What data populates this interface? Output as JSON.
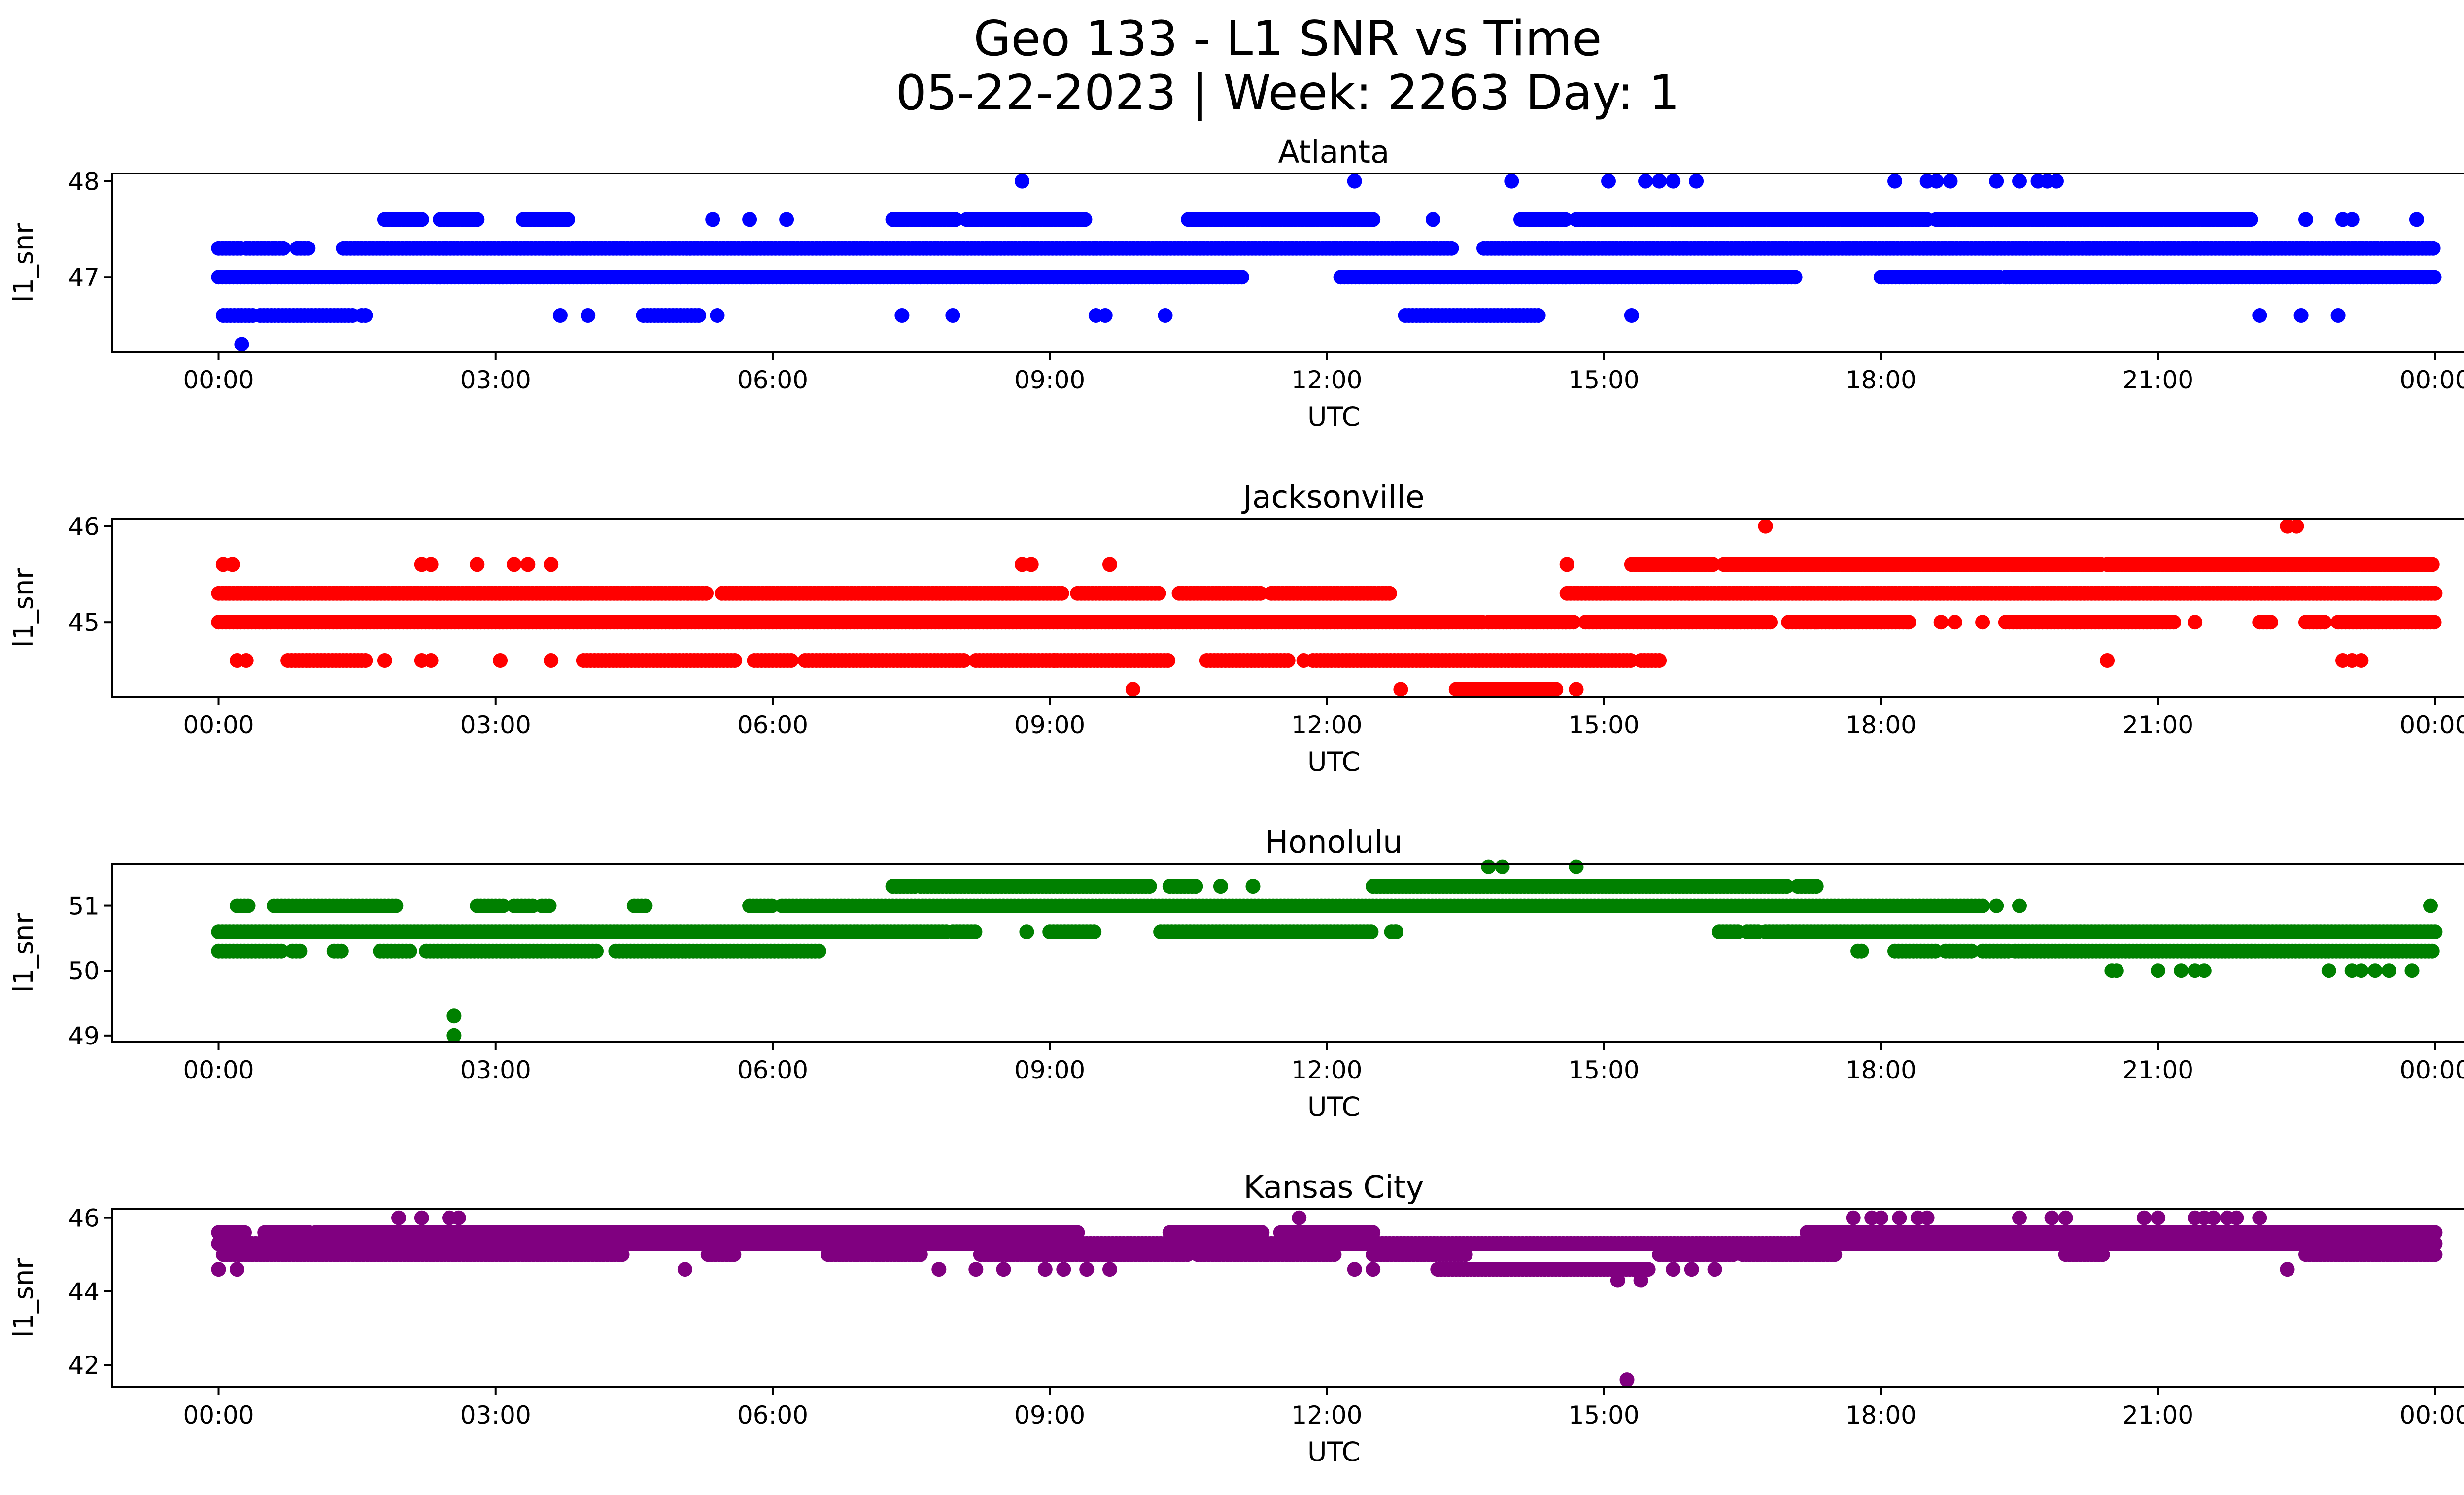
{
  "figure": {
    "title_line1": "Geo 133 - L1 SNR vs Time",
    "title_line2": "05-22-2023 | Week: 2263 Day: 1"
  },
  "chart_data": [
    {
      "type": "scatter",
      "title": "Atlanta",
      "xlabel": "UTC",
      "ylabel": "l1_snr",
      "color": "#0000ff",
      "xlim_hours": [
        -1.15,
        25.3
      ],
      "ylim": [
        46.22,
        48.08
      ],
      "x_ticks": [
        "00:00",
        "03:00",
        "06:00",
        "09:00",
        "12:00",
        "15:00",
        "18:00",
        "21:00",
        "00:00"
      ],
      "y_ticks": [
        47,
        48
      ],
      "bands": [
        {
          "y": 47.3,
          "ranges": [
            [
              0,
              0.25
            ],
            [
              0.3,
              0.7
            ],
            [
              0.85,
              1.0
            ],
            [
              1.35,
              13.35
            ],
            [
              13.7,
              24.0
            ]
          ]
        },
        {
          "y": 47.0,
          "ranges": [
            [
              0,
              11.1
            ],
            [
              12.15,
              17.1
            ],
            [
              18.0,
              19.3
            ],
            [
              19.35,
              24.0
            ]
          ]
        },
        {
          "y": 47.6,
          "ranges": [
            [
              1.8,
              2.2
            ],
            [
              2.4,
              2.8
            ],
            [
              3.3,
              3.8
            ],
            [
              7.3,
              8.0
            ],
            [
              8.1,
              9.4
            ],
            [
              10.5,
              12.5
            ],
            [
              14.1,
              14.6
            ],
            [
              14.7,
              18.5
            ],
            [
              18.6,
              22.0
            ]
          ]
        },
        {
          "y": 46.6,
          "ranges": [
            [
              0.05,
              0.4
            ],
            [
              0.45,
              1.45
            ],
            [
              1.55,
              1.6
            ],
            [
              4.6,
              5.2
            ],
            [
              12.85,
              14.3
            ]
          ]
        }
      ],
      "points": [
        [
          0.25,
          46.3
        ],
        [
          8.7,
          48.0
        ],
        [
          12.3,
          48.0
        ],
        [
          14.0,
          48.0
        ],
        [
          15.05,
          48.0
        ],
        [
          15.45,
          48.0
        ],
        [
          15.6,
          48.0
        ],
        [
          15.75,
          48.0
        ],
        [
          16.0,
          48.0
        ],
        [
          18.15,
          48.0
        ],
        [
          18.5,
          48.0
        ],
        [
          18.6,
          48.0
        ],
        [
          18.75,
          48.0
        ],
        [
          19.25,
          48.0
        ],
        [
          19.5,
          48.0
        ],
        [
          19.7,
          48.0
        ],
        [
          19.8,
          48.0
        ],
        [
          19.9,
          48.0
        ],
        [
          5.35,
          47.6
        ],
        [
          5.75,
          47.6
        ],
        [
          6.15,
          47.6
        ],
        [
          13.15,
          47.6
        ],
        [
          22.6,
          47.6
        ],
        [
          23.0,
          47.6
        ],
        [
          23.1,
          47.6
        ],
        [
          23.8,
          47.6
        ],
        [
          3.7,
          46.6
        ],
        [
          4.0,
          46.6
        ],
        [
          5.4,
          46.6
        ],
        [
          7.4,
          46.6
        ],
        [
          7.95,
          46.6
        ],
        [
          9.5,
          46.6
        ],
        [
          9.6,
          46.6
        ],
        [
          10.25,
          46.6
        ],
        [
          15.3,
          46.6
        ],
        [
          22.1,
          46.6
        ],
        [
          22.55,
          46.6
        ],
        [
          22.95,
          46.6
        ]
      ]
    },
    {
      "type": "scatter",
      "title": "Jacksonville",
      "xlabel": "UTC",
      "ylabel": "l1_snr",
      "color": "#ff0000",
      "xlim_hours": [
        -1.15,
        25.3
      ],
      "ylim": [
        44.22,
        46.08
      ],
      "x_ticks": [
        "00:00",
        "03:00",
        "06:00",
        "09:00",
        "12:00",
        "15:00",
        "18:00",
        "21:00",
        "00:00"
      ],
      "y_ticks": [
        45,
        46
      ],
      "bands": [
        {
          "y": 45.3,
          "ranges": [
            [
              0,
              5.3
            ],
            [
              5.45,
              9.15
            ],
            [
              9.3,
              10.2
            ],
            [
              10.4,
              11.3
            ],
            [
              11.4,
              12.7
            ],
            [
              14.6,
              24.0
            ]
          ]
        },
        {
          "y": 45.0,
          "ranges": [
            [
              0,
              13.7
            ],
            [
              13.75,
              14.7
            ],
            [
              14.8,
              16.8
            ],
            [
              17.0,
              18.0
            ],
            [
              18.0,
              18.3
            ],
            [
              19.35,
              19.75
            ],
            [
              19.8,
              21.0
            ],
            [
              21.05,
              21.2
            ],
            [
              22.1,
              22.25
            ],
            [
              22.6,
              22.8
            ],
            [
              22.95,
              24.0
            ]
          ]
        },
        {
          "y": 45.6,
          "ranges": [
            [
              15.3,
              16.2
            ],
            [
              16.3,
              20.4
            ],
            [
              20.45,
              24.0
            ]
          ]
        },
        {
          "y": 44.6,
          "ranges": [
            [
              0.75,
              1.6
            ],
            [
              1.7,
              1.6
            ],
            [
              3.95,
              5.6
            ],
            [
              5.8,
              6.2
            ],
            [
              6.35,
              8.1
            ],
            [
              8.2,
              10.3
            ],
            [
              10.7,
              11.6
            ],
            [
              11.85,
              15.3
            ],
            [
              15.4,
              15.6
            ]
          ]
        },
        {
          "y": 44.3,
          "ranges": [
            [
              13.4,
              14.5
            ]
          ]
        }
      ],
      "points": [
        [
          0.05,
          45.6
        ],
        [
          0.15,
          45.6
        ],
        [
          2.2,
          45.6
        ],
        [
          2.3,
          45.6
        ],
        [
          2.8,
          45.6
        ],
        [
          3.2,
          45.6
        ],
        [
          3.35,
          45.6
        ],
        [
          3.6,
          45.6
        ],
        [
          8.7,
          45.6
        ],
        [
          8.8,
          45.6
        ],
        [
          9.65,
          45.6
        ],
        [
          14.6,
          45.6
        ],
        [
          16.75,
          46.0
        ],
        [
          22.4,
          46.0
        ],
        [
          22.5,
          46.0
        ],
        [
          0.2,
          44.6
        ],
        [
          0.3,
          44.6
        ],
        [
          1.8,
          44.6
        ],
        [
          2.2,
          44.6
        ],
        [
          2.3,
          44.6
        ],
        [
          3.05,
          44.6
        ],
        [
          3.6,
          44.6
        ],
        [
          9.05,
          44.6
        ],
        [
          11.75,
          44.6
        ],
        [
          20.45,
          44.6
        ],
        [
          23.0,
          44.6
        ],
        [
          23.1,
          44.6
        ],
        [
          23.2,
          44.6
        ],
        [
          9.9,
          44.3
        ],
        [
          12.8,
          44.3
        ],
        [
          14.7,
          44.3
        ],
        [
          17.3,
          45.0
        ],
        [
          18.3,
          45.0
        ],
        [
          18.65,
          45.0
        ],
        [
          18.8,
          45.0
        ],
        [
          19.1,
          45.0
        ],
        [
          21.4,
          45.0
        ]
      ]
    },
    {
      "type": "scatter",
      "title": "Honolulu",
      "xlabel": "UTC",
      "ylabel": "l1_snr",
      "color": "#008000",
      "xlim_hours": [
        -1.15,
        25.3
      ],
      "ylim": [
        48.9,
        51.65
      ],
      "x_ticks": [
        "00:00",
        "03:00",
        "06:00",
        "09:00",
        "12:00",
        "15:00",
        "18:00",
        "21:00",
        "00:00"
      ],
      "y_ticks": [
        49,
        50,
        51
      ],
      "bands": [
        {
          "y": 50.3,
          "ranges": [
            [
              0,
              0.7
            ],
            [
              0.8,
              0.9
            ],
            [
              1.25,
              1.35
            ],
            [
              1.75,
              2.1
            ],
            [
              2.25,
              4.1
            ],
            [
              4.3,
              6.5
            ],
            [
              17.75,
              17.8
            ],
            [
              18.15,
              18.6
            ],
            [
              18.7,
              19.0
            ],
            [
              19.1,
              19.4
            ],
            [
              19.45,
              24.0
            ]
          ]
        },
        {
          "y": 50.6,
          "ranges": [
            [
              0,
              7.9
            ],
            [
              7.95,
              8.2
            ],
            [
              9.0,
              9.5
            ],
            [
              10.2,
              12.5
            ],
            [
              12.7,
              12.75
            ],
            [
              16.25,
              16.45
            ],
            [
              16.55,
              16.7
            ],
            [
              16.75,
              17.0
            ],
            [
              17.0,
              24.0
            ]
          ]
        },
        {
          "y": 51.0,
          "ranges": [
            [
              0.2,
              0.35
            ],
            [
              0.6,
              1.95
            ],
            [
              2.8,
              3.1
            ],
            [
              3.2,
              3.4
            ],
            [
              3.5,
              3.6
            ],
            [
              4.5,
              4.65
            ],
            [
              5.75,
              6.0
            ],
            [
              6.1,
              19.1
            ]
          ]
        },
        {
          "y": 51.3,
          "ranges": [
            [
              7.3,
              7.55
            ],
            [
              7.6,
              10.1
            ],
            [
              10.3,
              10.6
            ],
            [
              12.5,
              17.0
            ],
            [
              17.1,
              17.3
            ]
          ]
        }
      ],
      "points": [
        [
          2.55,
          49.3
        ],
        [
          2.55,
          49.0
        ],
        [
          13.75,
          51.6
        ],
        [
          13.9,
          51.6
        ],
        [
          14.7,
          51.6
        ],
        [
          10.85,
          51.3
        ],
        [
          11.2,
          51.3
        ],
        [
          19.25,
          51.0
        ],
        [
          19.5,
          51.0
        ],
        [
          8.75,
          50.6
        ],
        [
          12.75,
          50.6
        ],
        [
          20.5,
          50.0
        ],
        [
          20.55,
          50.0
        ],
        [
          21.0,
          50.0
        ],
        [
          21.25,
          50.0
        ],
        [
          21.4,
          50.0
        ],
        [
          21.5,
          50.0
        ],
        [
          22.85,
          50.0
        ],
        [
          23.1,
          50.0
        ],
        [
          23.2,
          50.0
        ],
        [
          23.35,
          50.0
        ],
        [
          23.5,
          50.0
        ],
        [
          23.75,
          50.0
        ],
        [
          23.95,
          51.0
        ]
      ]
    },
    {
      "type": "scatter",
      "title": "Kansas City",
      "xlabel": "UTC",
      "ylabel": "l1_snr",
      "color": "#800080",
      "xlim_hours": [
        -1.15,
        25.3
      ],
      "ylim": [
        41.4,
        46.25
      ],
      "x_ticks": [
        "00:00",
        "03:00",
        "06:00",
        "09:00",
        "12:00",
        "15:00",
        "18:00",
        "21:00",
        "00:00"
      ],
      "y_ticks": [
        42,
        44,
        46
      ],
      "bands": [
        {
          "y": 45.0,
          "ranges": [
            [
              0.05,
              4.4
            ],
            [
              5.3,
              5.6
            ],
            [
              6.6,
              7.6
            ],
            [
              8.25,
              10.5
            ],
            [
              10.6,
              12.1
            ],
            [
              12.5,
              13.5
            ],
            [
              15.6,
              16.4
            ],
            [
              16.5,
              17.5
            ],
            [
              20.0,
              20.4
            ],
            [
              22.6,
              24.0
            ]
          ]
        },
        {
          "y": 45.3,
          "ranges": [
            [
              0,
              24.0
            ]
          ]
        },
        {
          "y": 45.6,
          "ranges": [
            [
              0,
              0.3
            ],
            [
              0.5,
              1.0
            ],
            [
              1.05,
              6.5
            ],
            [
              5.5,
              9.3
            ],
            [
              10.3,
              11.3
            ],
            [
              11.5,
              12.5
            ],
            [
              17.2,
              24.0
            ]
          ]
        },
        {
          "y": 44.6,
          "ranges": [
            [
              13.2,
              15.5
            ]
          ]
        }
      ],
      "points": [
        [
          0.0,
          44.6
        ],
        [
          0.2,
          44.6
        ],
        [
          5.05,
          44.6
        ],
        [
          7.8,
          44.6
        ],
        [
          8.2,
          44.6
        ],
        [
          8.5,
          44.6
        ],
        [
          8.95,
          44.6
        ],
        [
          9.15,
          44.6
        ],
        [
          9.4,
          44.6
        ],
        [
          9.65,
          44.6
        ],
        [
          12.3,
          44.6
        ],
        [
          12.5,
          44.6
        ],
        [
          15.75,
          44.6
        ],
        [
          15.95,
          44.6
        ],
        [
          16.2,
          44.6
        ],
        [
          22.4,
          44.6
        ],
        [
          15.15,
          44.3
        ],
        [
          15.4,
          44.3
        ],
        [
          15.25,
          41.6
        ],
        [
          1.95,
          46.0
        ],
        [
          2.2,
          46.0
        ],
        [
          2.5,
          46.0
        ],
        [
          2.6,
          46.0
        ],
        [
          11.7,
          46.0
        ],
        [
          17.7,
          46.0
        ],
        [
          17.9,
          46.0
        ],
        [
          18.0,
          46.0
        ],
        [
          18.2,
          46.0
        ],
        [
          18.4,
          46.0
        ],
        [
          18.5,
          46.0
        ],
        [
          19.5,
          46.0
        ],
        [
          19.85,
          46.0
        ],
        [
          20.0,
          46.0
        ],
        [
          20.85,
          46.0
        ],
        [
          21.0,
          46.0
        ],
        [
          21.4,
          46.0
        ],
        [
          21.5,
          46.0
        ],
        [
          21.6,
          46.0
        ],
        [
          21.75,
          46.0
        ],
        [
          21.85,
          46.0
        ],
        [
          22.1,
          46.0
        ]
      ]
    }
  ]
}
